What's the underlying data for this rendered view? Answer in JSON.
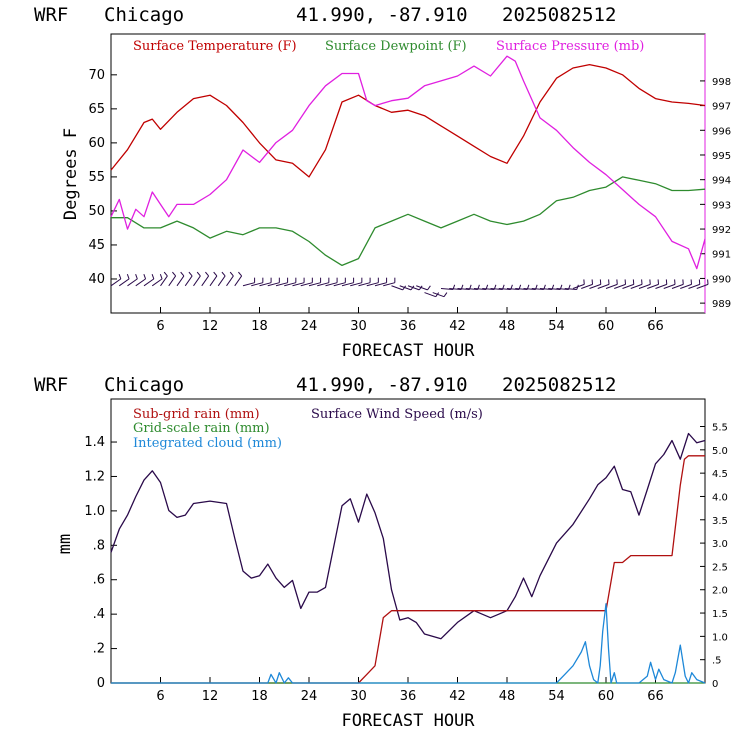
{
  "header": {
    "model": "WRF",
    "location": "Chicago",
    "coords": "41.990, -87.910",
    "date": "2025082512"
  },
  "colors": {
    "temperature": "#c00000",
    "dewpoint": "#2e8b2e",
    "pressure": "#e020e0",
    "wind": "#2a0a4a",
    "subgrid": "#b01010",
    "gridscale": "#2e8b2e",
    "cloud": "#1e88d8"
  },
  "chart_data": [
    {
      "type": "line",
      "xlabel": "FORECAST HOUR",
      "ylabel": "Degrees F",
      "xlim": [
        0,
        72
      ],
      "ylim": [
        35,
        76
      ],
      "y2lim": [
        988.6,
        999.9
      ],
      "x_ticks": [
        "6",
        "12",
        "18",
        "24",
        "30",
        "36",
        "42",
        "48",
        "54",
        "60",
        "66"
      ],
      "y_ticks": [
        "40",
        "45",
        "50",
        "55",
        "60",
        "65",
        "70"
      ],
      "y2_ticks": [
        "989",
        "990",
        "991",
        "992",
        "993",
        "994",
        "995",
        "996",
        "997",
        "998"
      ],
      "legend": [
        "Surface Temperature (F)",
        "Surface Dewpoint (F)",
        "Surface Pressure (mb)"
      ],
      "series": [
        {
          "name": "Surface Temperature (F)",
          "axis": "left",
          "x": [
            0,
            2,
            4,
            5,
            6,
            8,
            10,
            12,
            14,
            16,
            18,
            20,
            22,
            24,
            26,
            28,
            30,
            32,
            34,
            36,
            38,
            40,
            42,
            44,
            46,
            48,
            50,
            52,
            54,
            56,
            58,
            60,
            62,
            64,
            66,
            68,
            70,
            72
          ],
          "y": [
            56,
            59,
            63,
            63.5,
            62,
            64.5,
            66.5,
            67,
            65.5,
            63,
            60,
            57.5,
            57,
            55,
            59,
            66,
            67,
            65.5,
            64.5,
            64.8,
            64,
            62.5,
            61,
            59.5,
            58,
            57,
            61,
            66,
            69.5,
            71,
            71.5,
            71,
            70,
            68,
            66.5,
            66,
            65.8,
            65.5
          ]
        },
        {
          "name": "Surface Dewpoint (F)",
          "axis": "left",
          "x": [
            0,
            2,
            4,
            6,
            8,
            10,
            12,
            14,
            16,
            18,
            20,
            22,
            24,
            26,
            28,
            30,
            32,
            34,
            36,
            38,
            40,
            42,
            44,
            46,
            48,
            50,
            52,
            54,
            56,
            58,
            60,
            62,
            64,
            66,
            68,
            70,
            72
          ],
          "y": [
            49,
            49,
            47.5,
            47.5,
            48.5,
            47.5,
            46,
            47,
            46.5,
            47.5,
            47.5,
            47,
            45.5,
            43.5,
            42,
            43,
            47.5,
            48.5,
            49.5,
            48.5,
            47.5,
            48.5,
            49.5,
            48.5,
            48,
            48.5,
            49.5,
            51.5,
            52,
            53,
            53.5,
            55,
            54.5,
            54,
            53,
            53,
            53.2
          ]
        },
        {
          "name": "Surface Pressure (mb)",
          "axis": "right",
          "x": [
            0,
            1,
            2,
            3,
            4,
            5,
            6,
            7,
            8,
            10,
            12,
            14,
            16,
            18,
            20,
            22,
            24,
            26,
            28,
            30,
            31,
            32,
            34,
            36,
            38,
            40,
            42,
            44,
            46,
            48,
            49,
            50,
            52,
            54,
            56,
            58,
            60,
            62,
            64,
            66,
            68,
            70,
            71,
            72
          ],
          "y": [
            992.5,
            993.2,
            992,
            992.8,
            992.5,
            993.5,
            993,
            992.5,
            993,
            993,
            993.4,
            994,
            995.2,
            994.7,
            995.5,
            996,
            997,
            997.8,
            998.3,
            998.3,
            997.2,
            997,
            997.2,
            997.3,
            997.8,
            998,
            998.2,
            998.6,
            998.2,
            999,
            998.8,
            998,
            996.5,
            996,
            995.3,
            994.7,
            994.2,
            993.6,
            993,
            992.5,
            991.5,
            991.2,
            990.4,
            991.6
          ]
        }
      ],
      "wind_barbs": "row of wind barbs along the bottom of the panel"
    },
    {
      "type": "line",
      "xlabel": "FORECAST HOUR",
      "ylabel": "mm",
      "xlim": [
        0,
        72
      ],
      "ylim": [
        0,
        1.65
      ],
      "y2lim": [
        0,
        6.09
      ],
      "x_ticks": [
        "6",
        "12",
        "18",
        "24",
        "30",
        "36",
        "42",
        "48",
        "54",
        "60",
        "66"
      ],
      "y_ticks": [
        "0",
        ".2",
        ".4",
        ".6",
        ".8",
        "1.0",
        "1.2",
        "1.4"
      ],
      "y2_ticks": [
        "0",
        ".5",
        "1.0",
        "1.5",
        "2.0",
        "2.5",
        "3.0",
        "3.5",
        "4.0",
        "4.5",
        "5.0",
        "5.5"
      ],
      "legend": [
        "Sub-grid rain (mm)",
        "Grid-scale rain (mm)",
        "Integrated cloud (mm)",
        "Surface Wind Speed (m/s)"
      ],
      "series": [
        {
          "name": "Surface Wind Speed (m/s)",
          "axis": "right",
          "x": [
            0,
            1,
            2,
            3,
            4,
            5,
            6,
            7,
            8,
            9,
            10,
            12,
            14,
            15,
            16,
            17,
            18,
            19,
            20,
            21,
            22,
            23,
            24,
            25,
            26,
            28,
            29,
            30,
            31,
            32,
            33,
            34,
            35,
            36,
            37,
            38,
            40,
            42,
            44,
            46,
            48,
            49,
            50,
            51,
            52,
            54,
            56,
            58,
            59,
            60,
            61,
            62,
            63,
            64,
            65,
            66,
            67,
            68,
            69,
            70,
            71,
            72
          ],
          "y": [
            2.8,
            3.3,
            3.6,
            4.0,
            4.35,
            4.55,
            4.3,
            3.7,
            3.55,
            3.6,
            3.85,
            3.9,
            3.85,
            3.1,
            2.4,
            2.25,
            2.3,
            2.55,
            2.25,
            2.05,
            2.2,
            1.6,
            1.95,
            1.95,
            2.05,
            3.8,
            3.95,
            3.45,
            4.05,
            3.65,
            3.1,
            2.0,
            1.35,
            1.4,
            1.3,
            1.05,
            0.95,
            1.3,
            1.55,
            1.4,
            1.55,
            1.85,
            2.25,
            1.85,
            2.3,
            3.0,
            3.4,
            3.95,
            4.25,
            4.4,
            4.65,
            4.15,
            4.1,
            3.6,
            4.15,
            4.7,
            4.9,
            5.2,
            4.8,
            5.35,
            5.15,
            5.2
          ]
        },
        {
          "name": "Sub-grid rain (mm)",
          "axis": "left",
          "x": [
            0,
            30,
            31,
            32,
            33,
            34,
            50,
            60,
            61,
            62,
            63,
            67,
            68,
            69,
            69.5,
            70,
            72
          ],
          "y": [
            0,
            0,
            0.05,
            0.1,
            0.38,
            0.42,
            0.42,
            0.42,
            0.7,
            0.7,
            0.74,
            0.74,
            0.74,
            1.15,
            1.3,
            1.32,
            1.32
          ]
        },
        {
          "name": "Grid-scale rain (mm)",
          "axis": "left",
          "x": [
            0,
            72
          ],
          "y": [
            0,
            0
          ]
        },
        {
          "name": "Integrated cloud (mm)",
          "axis": "left",
          "x": [
            0,
            19,
            19.4,
            20,
            20.4,
            21,
            21.5,
            22,
            54,
            55,
            56,
            57,
            57.5,
            58,
            58.5,
            59,
            59.3,
            59.6,
            60,
            60.3,
            60.6,
            61,
            61.3,
            62,
            64,
            65,
            65.4,
            66,
            66.4,
            67,
            68,
            68.4,
            69,
            69.6,
            70,
            70.4,
            71,
            72
          ],
          "y": [
            0,
            0,
            0.05,
            0,
            0.06,
            0,
            0.03,
            0,
            0,
            0.05,
            0.1,
            0.18,
            0.24,
            0.1,
            0.02,
            0,
            0.1,
            0.3,
            0.46,
            0.2,
            0,
            0.06,
            0,
            0,
            0,
            0.04,
            0.12,
            0.02,
            0.08,
            0.02,
            0,
            0.06,
            0.22,
            0.04,
            0,
            0.06,
            0.02,
            0
          ]
        }
      ]
    }
  ]
}
